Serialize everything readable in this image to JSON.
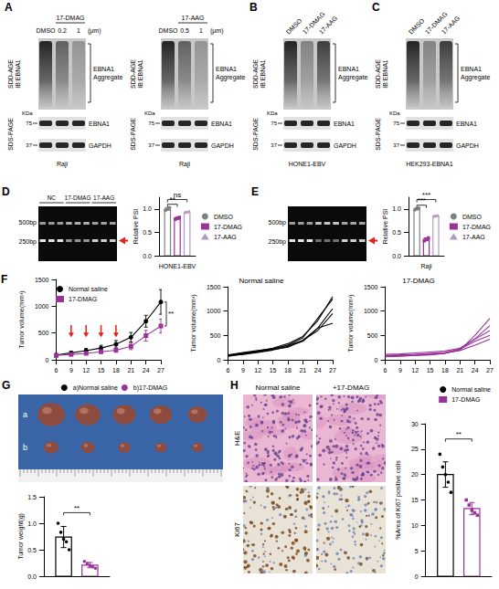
{
  "blots": {
    "sdd_label": [
      "SDD-AGE",
      "IB:EBNA1"
    ],
    "sds_label": "SDS-PAGE",
    "aggregate_label": [
      "EBNA1",
      "Aggregate"
    ],
    "marker_unit": "KDa",
    "markers": [
      75,
      37
    ],
    "bands": [
      "EBNA1",
      "GAPDH"
    ],
    "panels": [
      {
        "letter": "A",
        "lanes": [
          "DMSO",
          "0.2",
          "1"
        ],
        "group": "17-DMAG",
        "unit": "(μm)",
        "cell_line": "Raji"
      },
      {
        "letter": null,
        "lanes": [
          "DMSO",
          "0.5",
          "1"
        ],
        "group": "17-AAG",
        "unit": "(μm)",
        "cell_line": "Raji"
      },
      {
        "letter": "B",
        "lanes": [
          "DMSO",
          "17-DMAG",
          "17-AAG"
        ],
        "cell_line": "HONE1-EBV"
      },
      {
        "letter": "C",
        "lanes": [
          "DMSO",
          "17-DMAG",
          "17-AAG"
        ],
        "cell_line": "HEK293-EBNA1"
      }
    ]
  },
  "gels": [
    {
      "letter": "D",
      "markers": [
        "500bp",
        "250bp"
      ],
      "groups": [
        "NC",
        "17-DMAG",
        "17-AAG"
      ]
    },
    {
      "letter": "E",
      "markers": [
        "500bp",
        "250bp"
      ]
    }
  ],
  "chart_data": [
    {
      "type": "bar",
      "categories": [
        "HONE1-EBV"
      ],
      "y_label": "Relative PSI",
      "ylim": [
        0,
        1.25
      ],
      "yticks": [
        {
          "value": 0,
          "label": "0.0"
        },
        0.5,
        {
          "value": 1,
          "label": "1.0"
        }
      ],
      "legend": "right",
      "series": [
        {
          "name": "DMSO",
          "color": "#808080",
          "marker": "circle",
          "values": [
            1.0
          ],
          "errors": [
            0.03
          ],
          "points": [
            [
              0.97,
              1.0,
              1.03
            ]
          ]
        },
        {
          "name": "17-DMAG",
          "color": "#993399",
          "marker": "square",
          "values": [
            0.8
          ],
          "errors": [
            0.02
          ],
          "points": [
            [
              0.78,
              0.8,
              0.82
            ]
          ]
        },
        {
          "name": "17-AAG",
          "color": "#b39bc8",
          "marker": "triangle",
          "values": [
            0.93
          ],
          "errors": [
            0.01
          ],
          "points": [
            [
              0.92,
              0.93,
              0.95
            ]
          ]
        }
      ],
      "annotations": [
        {
          "text": "**",
          "between": [
            "DMSO",
            "17-DMAG"
          ],
          "y": 1.1
        },
        {
          "text": "ns",
          "between": [
            "DMSO",
            "17-AAG"
          ],
          "y": 1.2
        }
      ]
    },
    {
      "type": "bar",
      "categories": [
        "Raji"
      ],
      "y_label": "Relative PSI",
      "ylim": [
        0,
        1.25
      ],
      "yticks": [
        {
          "value": 0,
          "label": "0.0"
        },
        0.5,
        {
          "value": 1,
          "label": "1.0"
        }
      ],
      "legend": "right",
      "series": [
        {
          "name": "DMSO",
          "color": "#808080",
          "marker": "circle",
          "values": [
            1.0
          ],
          "errors": [
            0.02
          ],
          "points": [
            [
              0.98,
              1.0,
              1.02
            ]
          ]
        },
        {
          "name": "17-DMAG",
          "color": "#993399",
          "marker": "square",
          "values": [
            0.35
          ],
          "errors": [
            0.03
          ],
          "points": [
            [
              0.32,
              0.35,
              0.38
            ]
          ]
        },
        {
          "name": "17-AAG",
          "color": "#b39bc8",
          "marker": "triangle",
          "values": [
            0.85
          ],
          "errors": [
            0.01
          ],
          "points": [
            [
              0.84,
              0.85,
              0.86
            ]
          ]
        }
      ],
      "annotations": [
        {
          "text": "***",
          "between": [
            "DMSO",
            "17-DMAG"
          ],
          "y": 1.08
        },
        {
          "text": "***",
          "between": [
            "DMSO",
            "17-AAG"
          ],
          "y": 1.2
        }
      ]
    },
    {
      "letter": "F",
      "type": "line",
      "x": [
        6,
        9,
        12,
        15,
        18,
        21,
        24,
        27
      ],
      "xlim": [
        6,
        27
      ],
      "xticks": [
        6,
        9,
        12,
        15,
        18,
        21,
        24,
        27
      ],
      "ylim": [
        0,
        1500
      ],
      "yticks": [
        0,
        500,
        1000,
        1500
      ],
      "y_label": "Tumor volume(mm³)",
      "legend": "top-left",
      "series": [
        {
          "name": "Normal saline",
          "color": "#000000",
          "marker": "circle",
          "values": [
            90,
            130,
            170,
            220,
            290,
            420,
            720,
            1080
          ],
          "errors": [
            15,
            30,
            40,
            50,
            70,
            90,
            110,
            230
          ]
        },
        {
          "name": "17-DMAG",
          "color": "#993399",
          "marker": "square",
          "values": [
            80,
            100,
            120,
            150,
            180,
            250,
            450,
            630
          ],
          "errors": [
            15,
            20,
            25,
            30,
            40,
            60,
            100,
            130
          ]
        }
      ],
      "arrows": {
        "x": [
          9,
          12,
          15,
          18
        ],
        "from": 650,
        "to": 420,
        "color": "#e3201b"
      },
      "significance": "**"
    },
    {
      "type": "line",
      "title": "Normal saline",
      "marker": "none",
      "x": [
        6,
        9,
        12,
        15,
        18,
        21,
        24,
        27
      ],
      "xlim": [
        6,
        27
      ],
      "xticks": [
        6,
        9,
        12,
        15,
        18,
        21,
        24,
        27
      ],
      "ylim": [
        0,
        1500
      ],
      "yticks": [
        0,
        500,
        1000,
        1500
      ],
      "y_label": "Tumor volume(mm³)",
      "series": [
        {
          "color": "#000000",
          "values": [
            90,
            130,
            180,
            240,
            330,
            480,
            800,
            1300
          ]
        },
        {
          "color": "#000000",
          "values": [
            100,
            140,
            170,
            220,
            300,
            450,
            850,
            1250
          ]
        },
        {
          "color": "#000000",
          "values": [
            80,
            110,
            150,
            200,
            270,
            380,
            650,
            1050
          ]
        },
        {
          "color": "#000000",
          "values": [
            70,
            120,
            160,
            210,
            260,
            400,
            600,
            950
          ]
        },
        {
          "color": "#000000",
          "values": [
            95,
            150,
            190,
            230,
            290,
            400,
            650,
            750
          ]
        }
      ]
    },
    {
      "type": "line",
      "title": "17-DMAG",
      "marker": "none",
      "x": [
        6,
        9,
        12,
        15,
        18,
        21,
        24,
        27
      ],
      "xlim": [
        6,
        27
      ],
      "xticks": [
        6,
        9,
        12,
        15,
        18,
        21,
        24,
        27
      ],
      "ylim": [
        0,
        1500
      ],
      "yticks": [
        0,
        500,
        1000,
        1500
      ],
      "y_label": "Tumor volume(mm³)",
      "series": [
        {
          "color": "#993399",
          "values": [
            70,
            80,
            90,
            100,
            130,
            200,
            500,
            850
          ]
        },
        {
          "color": "#993399",
          "values": [
            90,
            100,
            110,
            130,
            150,
            220,
            430,
            700
          ]
        },
        {
          "color": "#993399",
          "values": [
            110,
            120,
            140,
            160,
            180,
            240,
            420,
            600
          ]
        },
        {
          "color": "#993399",
          "values": [
            60,
            70,
            90,
            110,
            130,
            220,
            380,
            500
          ]
        },
        {
          "color": "#993399",
          "values": [
            80,
            90,
            100,
            120,
            140,
            190,
            300,
            420
          ]
        }
      ]
    },
    {
      "letter": "G",
      "type": "bar",
      "categories": [
        null
      ],
      "y_label": "Tumor weight(g)",
      "ylim": [
        0,
        1.5
      ],
      "yticks": [
        {
          "value": 0,
          "label": "0.0"
        },
        0.5,
        {
          "value": 1,
          "label": "1.0"
        },
        1.5
      ],
      "legend": "top",
      "series": [
        {
          "name": "a)Normal saline",
          "color": "#000000",
          "marker": "circle",
          "values": [
            0.74
          ],
          "errors": [
            0.2
          ],
          "points": [
            [
              1.0,
              0.83,
              0.7,
              0.65,
              0.5
            ]
          ]
        },
        {
          "name": "b)17-DMAG",
          "color": "#993399",
          "marker": "circle",
          "values": [
            0.21
          ],
          "errors": [
            0.05
          ],
          "points": [
            [
              0.28,
              0.24,
              0.2,
              0.18,
              0.15
            ]
          ]
        }
      ],
      "annotations": [
        {
          "text": "**",
          "between": [
            "a)Normal saline",
            "b)17-DMAG"
          ],
          "y": 1.2
        }
      ]
    },
    {
      "letter": "H",
      "type": "bar",
      "categories": [
        null
      ],
      "y_label": "%Area of Ki67 positive cells",
      "ylim": [
        0,
        30
      ],
      "yticks": [
        0,
        5,
        10,
        15,
        20,
        25,
        30
      ],
      "legend": "top-right",
      "series": [
        {
          "name": "Normal saline",
          "color": "#000000",
          "marker": "circle",
          "values": [
            20
          ],
          "errors": [
            2.5
          ],
          "points": [
            [
              24,
              21.5,
              20,
              18.5,
              16.5
            ]
          ]
        },
        {
          "name": "17-DMAG",
          "color": "#993399",
          "marker": "square",
          "values": [
            13.3
          ],
          "errors": [
            1.2
          ],
          "points": [
            [
              15,
              14,
              13,
              12.5,
              12
            ]
          ]
        }
      ],
      "annotations": [
        {
          "text": "**",
          "between": [
            "Normal saline",
            "17-DMAG"
          ],
          "y": 27
        }
      ]
    }
  ],
  "tumor_photo": {
    "rows": [
      "a",
      "b"
    ]
  },
  "histology": {
    "columns": [
      "Normal saline",
      "+17-DMAG"
    ],
    "rows": [
      "H&E",
      "Ki67"
    ]
  }
}
